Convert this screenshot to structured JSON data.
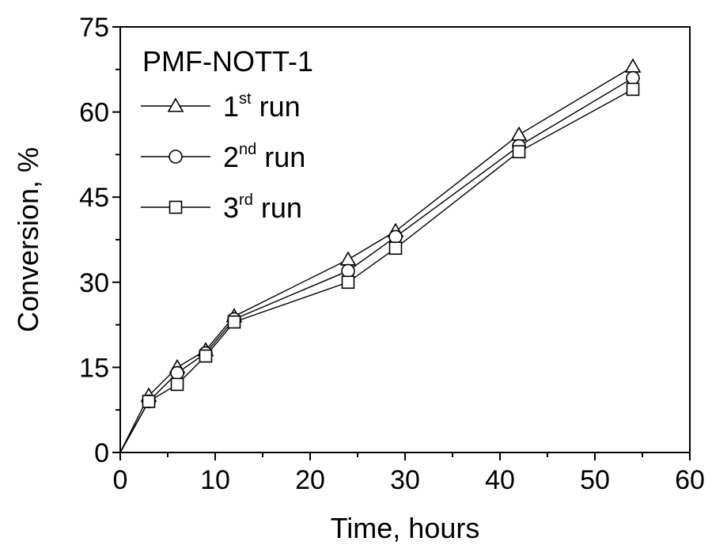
{
  "chart_data": {
    "type": "line",
    "title": "",
    "xlabel": "Time, hours",
    "ylabel": "Conversion, %",
    "xlim": [
      0,
      60
    ],
    "ylim": [
      0,
      75
    ],
    "x_ticks": [
      0,
      10,
      20,
      30,
      40,
      50,
      60
    ],
    "y_ticks": [
      0,
      15,
      30,
      45,
      60,
      75
    ],
    "grid": false,
    "legend": {
      "title": "PMF-NOTT-1",
      "position": "top-left"
    },
    "series": [
      {
        "label_base": "1",
        "label_sup": "st",
        "label_suffix": " run",
        "marker": "triangle",
        "x": [
          0,
          3,
          6,
          9,
          12,
          24,
          29,
          42,
          54
        ],
        "y": [
          0,
          10,
          15,
          18,
          24,
          34,
          39,
          56,
          68
        ]
      },
      {
        "label_base": "2",
        "label_sup": "nd",
        "label_suffix": " run",
        "marker": "circle",
        "x": [
          0,
          3,
          6,
          9,
          12,
          24,
          29,
          42,
          54
        ],
        "y": [
          0,
          9,
          14,
          17.5,
          23.5,
          32,
          38,
          54,
          66
        ]
      },
      {
        "label_base": "3",
        "label_sup": "rd",
        "label_suffix": " run",
        "marker": "square",
        "x": [
          0,
          3,
          6,
          9,
          12,
          24,
          29,
          42,
          54
        ],
        "y": [
          0,
          9,
          12,
          17,
          23,
          30,
          36,
          53,
          64
        ]
      }
    ]
  }
}
